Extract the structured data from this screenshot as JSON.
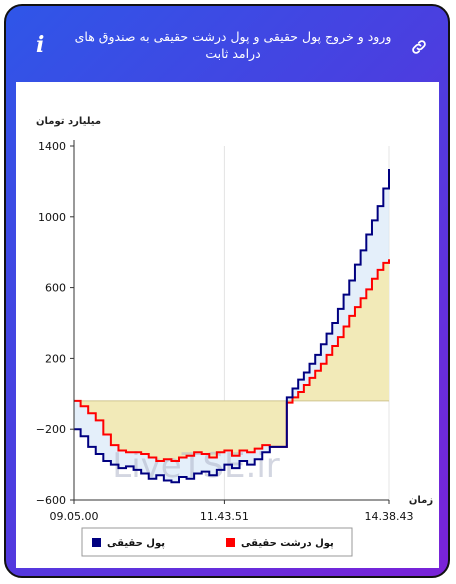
{
  "header": {
    "title": "ورود و خروج پول حقیقی و پول درشت حقیقی به صندوق های درامد ثابت",
    "info_label": "i"
  },
  "chart_data": {
    "type": "line",
    "ylabel": "میلیارد تومان",
    "xlabel": "زمان",
    "ylim": [
      -600,
      1400
    ],
    "y_ticks": [
      -600,
      -200,
      200,
      600,
      1000,
      1400
    ],
    "x_tick_labels": [
      "09.05.00",
      "11.43.51",
      "14.38.43"
    ],
    "x_range": [
      "09:05",
      "14:38"
    ],
    "grid": "vertical",
    "legend_position": "bottom",
    "watermark": "LiveTSE.ir",
    "series": [
      {
        "name": "پول حقیقی",
        "color": "#000080",
        "step": true,
        "x": [
          "09:05",
          "09:12",
          "09:20",
          "09:28",
          "09:36",
          "09:44",
          "09:52",
          "10:00",
          "10:08",
          "10:16",
          "10:24",
          "10:32",
          "10:40",
          "10:48",
          "10:56",
          "11:04",
          "11:12",
          "11:20",
          "11:28",
          "11:36",
          "11:44",
          "11:52",
          "12:00",
          "12:08",
          "12:16",
          "12:24",
          "12:32",
          "12:40",
          "12:50",
          "12:56",
          "13:02",
          "13:08",
          "13:14",
          "13:20",
          "13:26",
          "13:32",
          "13:38",
          "13:44",
          "13:50",
          "13:56",
          "14:02",
          "14:08",
          "14:14",
          "14:20",
          "14:26",
          "14:32",
          "14:38"
        ],
        "values": [
          -200,
          -240,
          -300,
          -340,
          -380,
          -400,
          -420,
          -410,
          -430,
          -450,
          -480,
          -460,
          -490,
          -500,
          -470,
          -480,
          -450,
          -440,
          -460,
          -430,
          -400,
          -420,
          -380,
          -400,
          -370,
          -330,
          -300,
          -300,
          -20,
          30,
          80,
          120,
          170,
          220,
          280,
          340,
          400,
          480,
          560,
          640,
          730,
          810,
          900,
          980,
          1060,
          1160,
          1270
        ]
      },
      {
        "name": "پول درشت حقیقی",
        "color": "#ff0000",
        "step": true,
        "x": [
          "09:05",
          "09:12",
          "09:20",
          "09:28",
          "09:36",
          "09:44",
          "09:52",
          "10:00",
          "10:08",
          "10:16",
          "10:24",
          "10:32",
          "10:40",
          "10:48",
          "10:56",
          "11:04",
          "11:12",
          "11:20",
          "11:28",
          "11:36",
          "11:44",
          "11:52",
          "12:00",
          "12:08",
          "12:16",
          "12:24",
          "12:32",
          "12:40",
          "12:50",
          "12:56",
          "13:02",
          "13:08",
          "13:14",
          "13:20",
          "13:26",
          "13:32",
          "13:38",
          "13:44",
          "13:50",
          "13:56",
          "14:02",
          "14:08",
          "14:14",
          "14:20",
          "14:26",
          "14:32",
          "14:38"
        ],
        "values": [
          -40,
          -70,
          -110,
          -150,
          -230,
          -290,
          -320,
          -330,
          -330,
          -340,
          -360,
          -380,
          -370,
          -380,
          -360,
          -350,
          -330,
          -340,
          -360,
          -330,
          -320,
          -350,
          -320,
          -330,
          -310,
          -290,
          -300,
          -300,
          -50,
          -20,
          10,
          50,
          90,
          130,
          170,
          220,
          270,
          320,
          380,
          440,
          490,
          540,
          590,
          650,
          700,
          740,
          760
        ]
      }
    ]
  }
}
